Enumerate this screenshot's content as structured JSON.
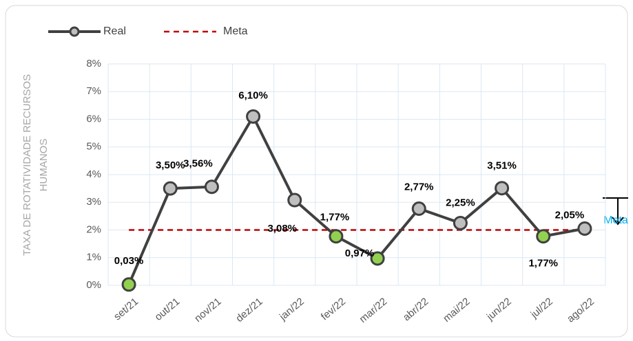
{
  "chart_data": {
    "type": "line",
    "y_label": [
      "TAXA DE ROTATIVIDADE RECURSOS",
      "HUMANOS"
    ],
    "categories": [
      "set/21",
      "out/21",
      "nov/21",
      "dez/21",
      "jan/22",
      "fev/22",
      "mar/22",
      "abr/22",
      "mai/22",
      "jun/22",
      "jul/22",
      "ago/22"
    ],
    "series": [
      {
        "name": "Real",
        "color": "#404040",
        "marker_color": "#bfbfbf",
        "marker_colors": [
          "#92d050",
          "#bfbfbf",
          "#bfbfbf",
          "#bfbfbf",
          "#bfbfbf",
          "#92d050",
          "#92d050",
          "#bfbfbf",
          "#bfbfbf",
          "#bfbfbf",
          "#92d050",
          "#bfbfbf"
        ],
        "values": [
          0.03,
          3.5,
          3.56,
          6.1,
          3.08,
          1.77,
          0.97,
          2.77,
          2.25,
          3.51,
          1.77,
          2.05
        ],
        "value_labels": [
          "0,03%",
          "3,50%",
          "3,56%",
          "6,10%",
          "3,08%",
          "1,77%",
          "0,97%",
          "2,77%",
          "2,25%",
          "3,51%",
          "1,77%",
          "2,05%"
        ]
      },
      {
        "name": "Meta",
        "color": "#c00000",
        "dashed": true,
        "values": [
          2,
          2,
          2,
          2,
          2,
          2,
          2,
          2,
          2,
          2,
          2,
          2
        ]
      }
    ],
    "annotation": "Meta",
    "ylim": [
      0,
      8
    ],
    "yticks": [
      {
        "value": 0,
        "label": "0%"
      },
      {
        "value": 1,
        "label": "1%"
      },
      {
        "value": 2,
        "label": "2%"
      },
      {
        "value": 3,
        "label": "3%"
      },
      {
        "value": 4,
        "label": "4%"
      },
      {
        "value": 5,
        "label": "5%"
      },
      {
        "value": 6,
        "label": "6%"
      },
      {
        "value": 7,
        "label": "7%"
      },
      {
        "value": 8,
        "label": "8%"
      }
    ],
    "grid": true,
    "legend": "top-left"
  }
}
